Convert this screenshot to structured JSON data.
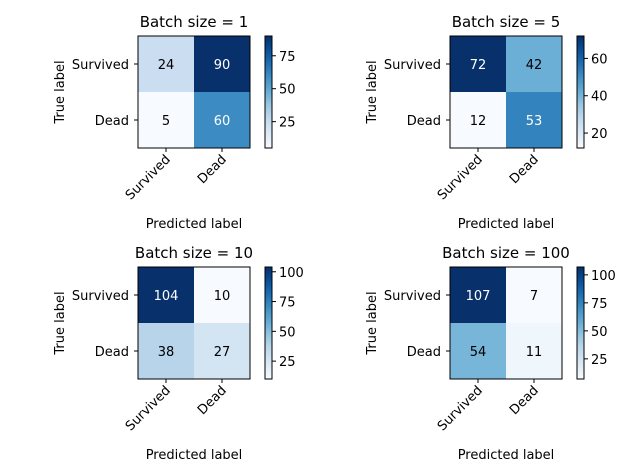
{
  "chart_data": [
    {
      "type": "heatmap",
      "title": "Batch size = 1",
      "xlabel": "Predicted label",
      "ylabel": "True label",
      "x_categories": [
        "Survived",
        "Dead"
      ],
      "y_categories": [
        "Survived",
        "Dead"
      ],
      "values": [
        [
          24,
          90
        ],
        [
          5,
          60
        ]
      ],
      "colorbar": {
        "range": [
          5,
          90
        ],
        "ticks": [
          25,
          50,
          75
        ]
      },
      "colormap": "Blues"
    },
    {
      "type": "heatmap",
      "title": "Batch size = 5",
      "xlabel": "Predicted label",
      "ylabel": "True label",
      "x_categories": [
        "Survived",
        "Dead"
      ],
      "y_categories": [
        "Survived",
        "Dead"
      ],
      "values": [
        [
          72,
          42
        ],
        [
          12,
          53
        ]
      ],
      "colorbar": {
        "range": [
          12,
          72
        ],
        "ticks": [
          20,
          40,
          60
        ]
      },
      "colormap": "Blues"
    },
    {
      "type": "heatmap",
      "title": "Batch size = 10",
      "xlabel": "Predicted label",
      "ylabel": "True label",
      "x_categories": [
        "Survived",
        "Dead"
      ],
      "y_categories": [
        "Survived",
        "Dead"
      ],
      "values": [
        [
          104,
          10
        ],
        [
          38,
          27
        ]
      ],
      "colorbar": {
        "range": [
          10,
          104
        ],
        "ticks": [
          25,
          50,
          75,
          100
        ]
      },
      "colormap": "Blues"
    },
    {
      "type": "heatmap",
      "title": "Batch size = 100",
      "xlabel": "Predicted label",
      "ylabel": "True label",
      "x_categories": [
        "Survived",
        "Dead"
      ],
      "y_categories": [
        "Survived",
        "Dead"
      ],
      "values": [
        [
          107,
          7
        ],
        [
          54,
          11
        ]
      ],
      "colorbar": {
        "range": [
          7,
          107
        ],
        "ticks": [
          25,
          50,
          75,
          100
        ]
      },
      "colormap": "Blues"
    }
  ]
}
